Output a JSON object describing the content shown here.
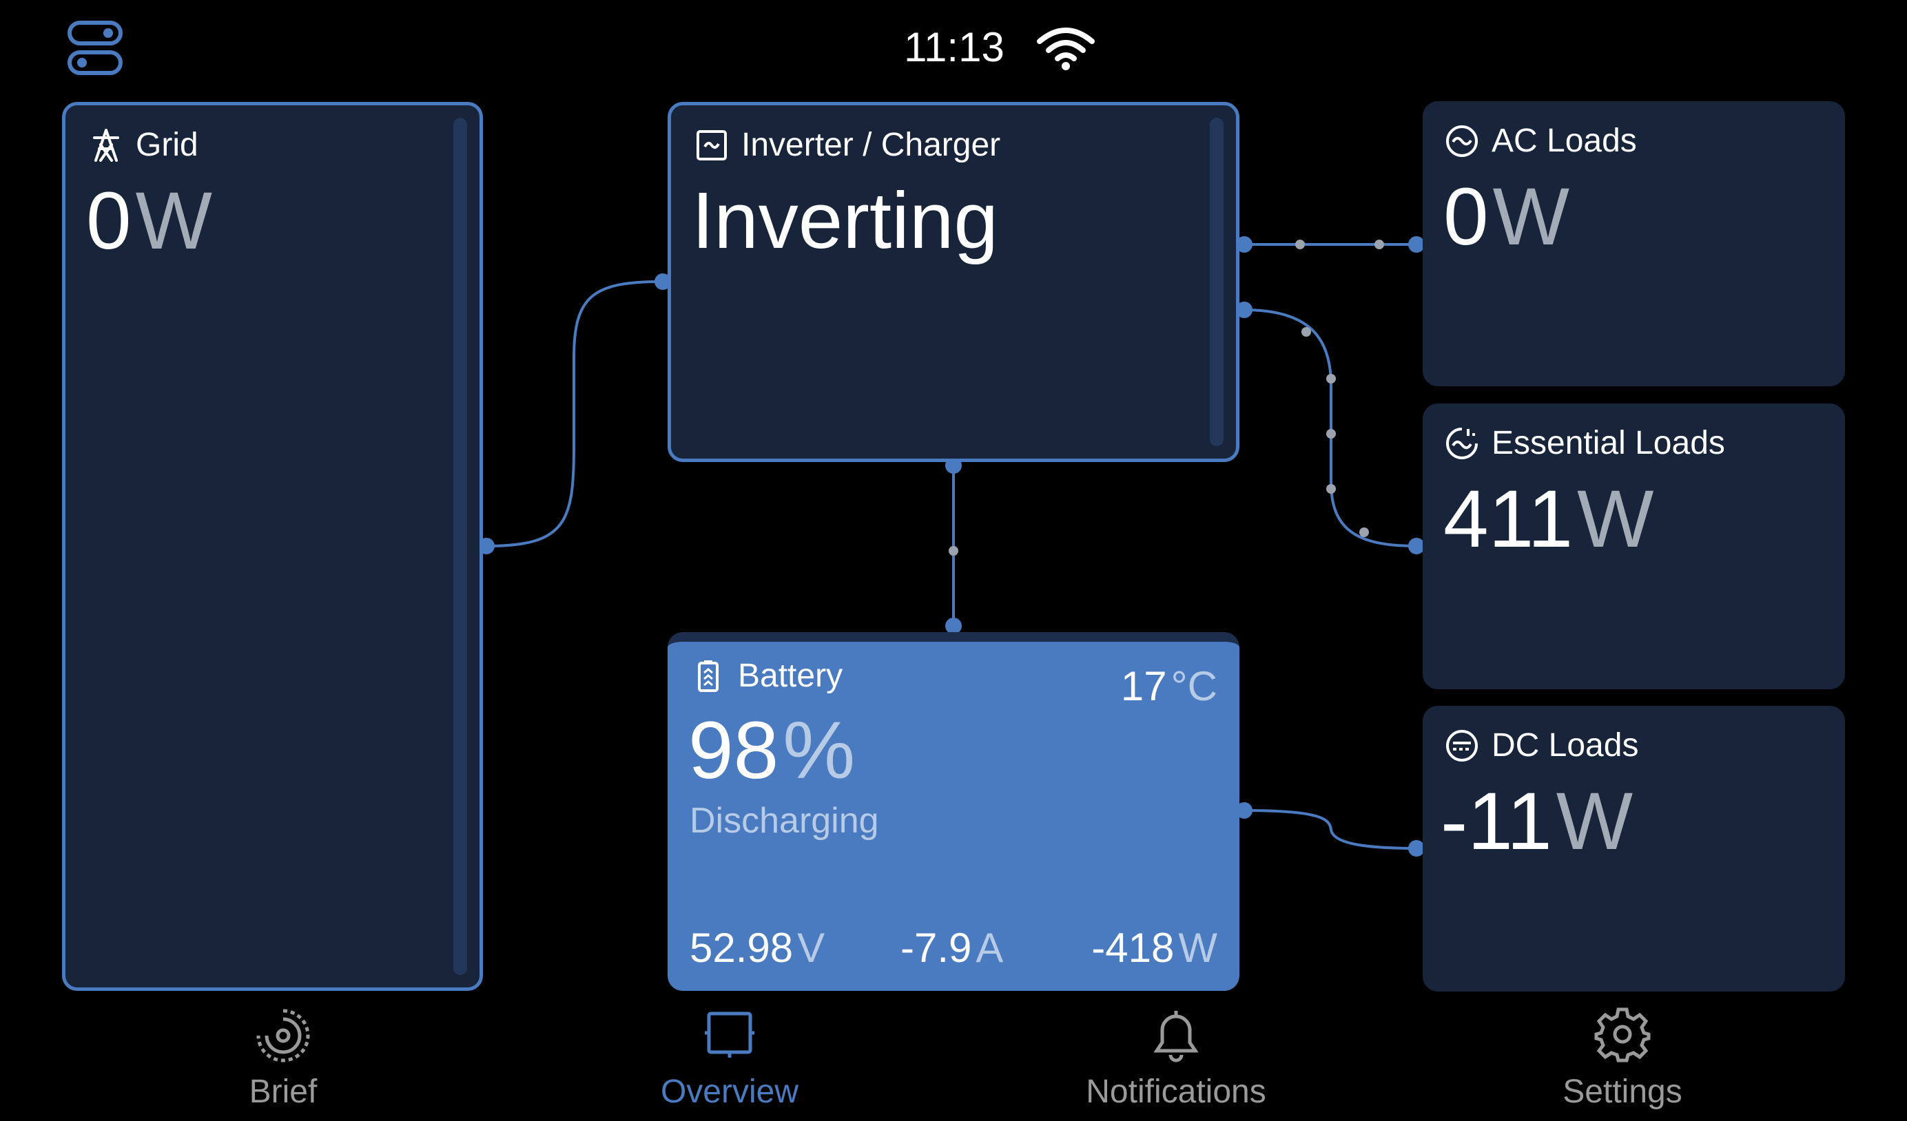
{
  "status_bar": {
    "time": "11:13",
    "wifi_icon": "wifi-icon",
    "menu_icon": "toggles-icon"
  },
  "colors": {
    "accent": "#4a7bc0",
    "panel": "#17243a",
    "background": "#000000"
  },
  "grid": {
    "title": "Grid",
    "value": "0",
    "unit": "W"
  },
  "inverter": {
    "title": "Inverter / Charger",
    "state": "Inverting"
  },
  "battery": {
    "title": "Battery",
    "temperature": "17",
    "temp_unit": "°C",
    "soc": "98",
    "soc_unit": "%",
    "state": "Discharging",
    "voltage": "52.98",
    "voltage_unit": "V",
    "current": "-7.9",
    "current_unit": "A",
    "power": "-418",
    "power_unit": "W"
  },
  "ac_loads": {
    "title": "AC Loads",
    "value": "0",
    "unit": "W"
  },
  "essential_loads": {
    "title": "Essential Loads",
    "value": "411",
    "unit": "W"
  },
  "dc_loads": {
    "title": "DC Loads",
    "value": "-11",
    "unit": "W"
  },
  "nav": [
    {
      "label": "Brief"
    },
    {
      "label": "Overview",
      "selected": true
    },
    {
      "label": "Notifications"
    },
    {
      "label": "Settings"
    }
  ]
}
